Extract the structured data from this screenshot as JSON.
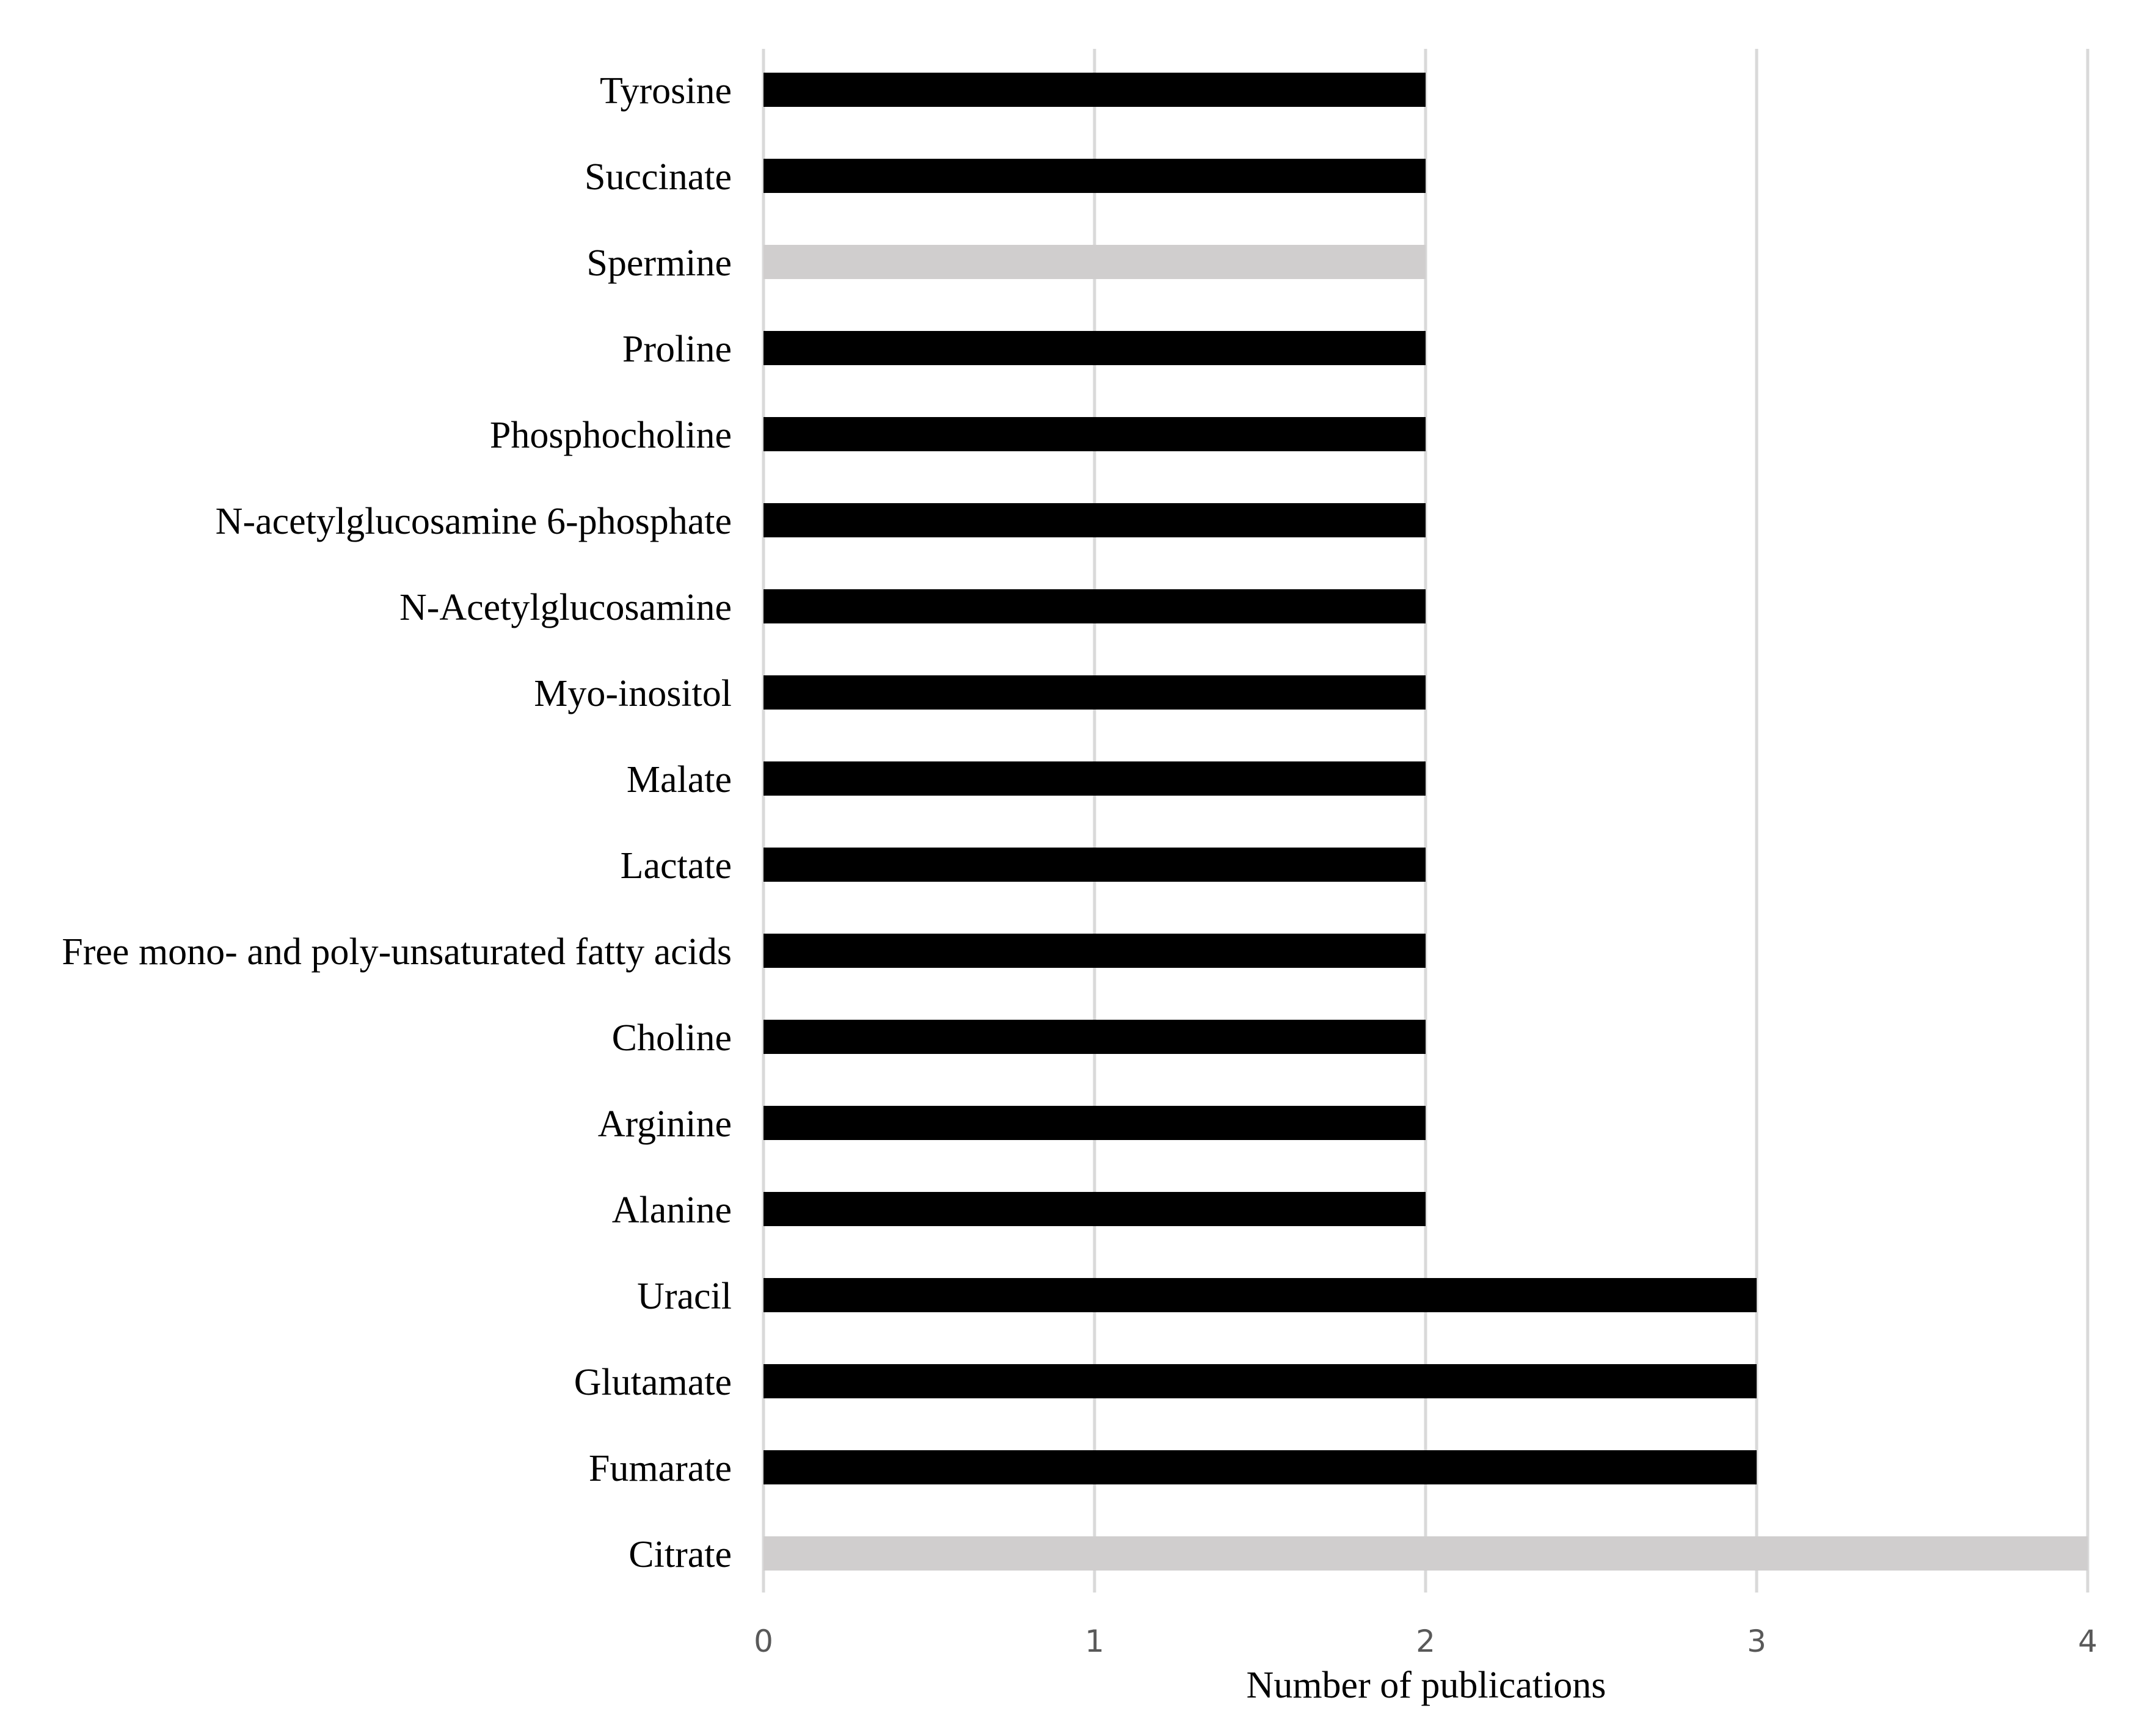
{
  "chart_data": {
    "type": "bar",
    "orientation": "horizontal",
    "categories": [
      "Tyrosine",
      "Succinate",
      "Spermine",
      "Proline",
      "Phosphocholine",
      "N-acetylglucosamine 6-phosphate",
      "N-Acetylglucosamine",
      "Myo-inositol",
      "Malate",
      "Lactate",
      "Free mono- and poly-unsaturated fatty acids",
      "Choline",
      "Arginine",
      "Alanine",
      "Uracil",
      "Glutamate",
      "Fumarate",
      "Citrate"
    ],
    "values": [
      2,
      2,
      2,
      2,
      2,
      2,
      2,
      2,
      2,
      2,
      2,
      2,
      2,
      2,
      3,
      3,
      3,
      4
    ],
    "bar_colors": [
      "#000000",
      "#000000",
      "#d0cece",
      "#000000",
      "#000000",
      "#000000",
      "#000000",
      "#000000",
      "#000000",
      "#000000",
      "#000000",
      "#000000",
      "#000000",
      "#000000",
      "#000000",
      "#000000",
      "#000000",
      "#d0cece"
    ],
    "title": "",
    "xlabel": "Number of publications",
    "ylabel": "",
    "xlim": [
      0,
      4
    ],
    "xticks": [
      "0",
      "1",
      "2",
      "3",
      "4"
    ],
    "grid": "vertical",
    "legend": "none",
    "colors": {
      "primary_bar": "#000000",
      "highlight_bar": "#d0cece",
      "gridline": "#d9d9d9",
      "tick_text": "#595959"
    }
  }
}
